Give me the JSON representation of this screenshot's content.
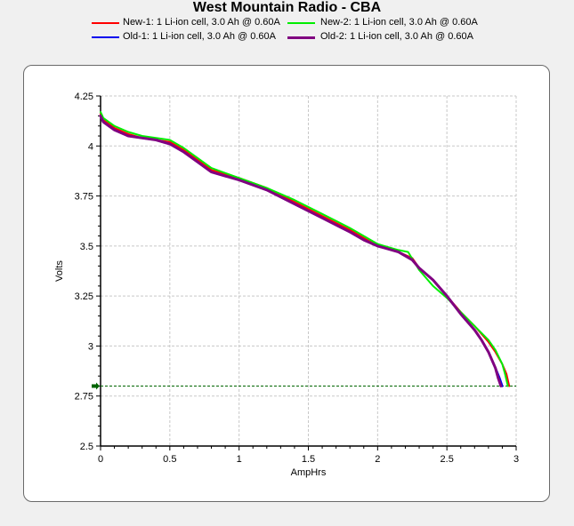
{
  "chart_data": {
    "type": "line",
    "title": "West Mountain Radio - CBA",
    "xlabel": "AmpHrs",
    "ylabel": "Volts",
    "xlim": [
      0,
      3
    ],
    "ylim": [
      2.5,
      4.25
    ],
    "xticks": [
      "0",
      "0.5",
      "1",
      "1.5",
      "2",
      "2.5",
      "3"
    ],
    "yticks": [
      "2.5",
      "2.75",
      "3",
      "3.25",
      "3.5",
      "3.75",
      "4",
      "4.25"
    ],
    "grid": true,
    "legend_position": "top",
    "cutoff_voltage": 2.8,
    "cutoff_color": "#006400",
    "series": [
      {
        "name": "New-1: 1 Li-ion cell, 3.0 Ah @ 0.60A",
        "color": "#ff0000",
        "x": [
          0,
          0.02,
          0.1,
          0.2,
          0.3,
          0.4,
          0.5,
          0.6,
          0.7,
          0.8,
          1.0,
          1.2,
          1.4,
          1.6,
          1.8,
          1.9,
          2.0,
          2.05,
          2.15,
          2.25,
          2.3,
          2.4,
          2.5,
          2.6,
          2.7,
          2.8,
          2.85,
          2.9,
          2.93,
          2.95
        ],
        "y": [
          4.16,
          4.13,
          4.09,
          4.06,
          4.04,
          4.03,
          4.02,
          3.98,
          3.93,
          3.88,
          3.84,
          3.79,
          3.72,
          3.65,
          3.58,
          3.54,
          3.5,
          3.49,
          3.47,
          3.44,
          3.39,
          3.33,
          3.25,
          3.17,
          3.1,
          3.02,
          2.97,
          2.91,
          2.86,
          2.8
        ]
      },
      {
        "name": "New-2: 1 Li-ion cell, 3.0 Ah @ 0.60A",
        "color": "#00ee00",
        "x": [
          0,
          0.02,
          0.1,
          0.2,
          0.3,
          0.4,
          0.5,
          0.6,
          0.7,
          0.8,
          1.0,
          1.2,
          1.4,
          1.6,
          1.8,
          1.9,
          2.0,
          2.05,
          2.15,
          2.22,
          2.3,
          2.4,
          2.5,
          2.6,
          2.7,
          2.8,
          2.85,
          2.9,
          2.92,
          2.94
        ],
        "y": [
          4.17,
          4.14,
          4.1,
          4.07,
          4.05,
          4.04,
          4.03,
          3.99,
          3.94,
          3.89,
          3.84,
          3.79,
          3.73,
          3.66,
          3.59,
          3.55,
          3.51,
          3.5,
          3.48,
          3.47,
          3.38,
          3.3,
          3.24,
          3.17,
          3.1,
          3.03,
          2.98,
          2.91,
          2.86,
          2.8
        ]
      },
      {
        "name": "Old-1: 1 Li-ion cell, 3.0 Ah @ 0.60A",
        "color": "#0000ee",
        "x": [
          0,
          0.02,
          0.1,
          0.2,
          0.3,
          0.4,
          0.5,
          0.6,
          0.7,
          0.8,
          1.0,
          1.2,
          1.4,
          1.6,
          1.8,
          1.9,
          2.0,
          2.05,
          2.15,
          2.25,
          2.3,
          2.4,
          2.5,
          2.6,
          2.7,
          2.75,
          2.8,
          2.85,
          2.88,
          2.9
        ],
        "y": [
          4.15,
          4.12,
          4.08,
          4.05,
          4.04,
          4.03,
          4.01,
          3.97,
          3.92,
          3.87,
          3.83,
          3.78,
          3.71,
          3.64,
          3.57,
          3.53,
          3.5,
          3.49,
          3.47,
          3.43,
          3.39,
          3.33,
          3.25,
          3.16,
          3.08,
          3.03,
          2.97,
          2.89,
          2.84,
          2.8
        ]
      },
      {
        "name": "Old-2: 1 Li-ion cell, 3.0 Ah @ 0.60A",
        "color": "#800080",
        "x": [
          0,
          0.02,
          0.1,
          0.2,
          0.3,
          0.4,
          0.5,
          0.6,
          0.7,
          0.8,
          1.0,
          1.2,
          1.4,
          1.6,
          1.8,
          1.9,
          2.0,
          2.05,
          2.15,
          2.25,
          2.3,
          2.4,
          2.5,
          2.6,
          2.7,
          2.75,
          2.8,
          2.85,
          2.87,
          2.89
        ],
        "y": [
          4.15,
          4.12,
          4.08,
          4.05,
          4.04,
          4.03,
          4.01,
          3.97,
          3.92,
          3.87,
          3.83,
          3.78,
          3.71,
          3.64,
          3.57,
          3.53,
          3.5,
          3.49,
          3.47,
          3.43,
          3.39,
          3.33,
          3.25,
          3.16,
          3.08,
          3.03,
          2.97,
          2.89,
          2.84,
          2.8
        ]
      }
    ]
  }
}
